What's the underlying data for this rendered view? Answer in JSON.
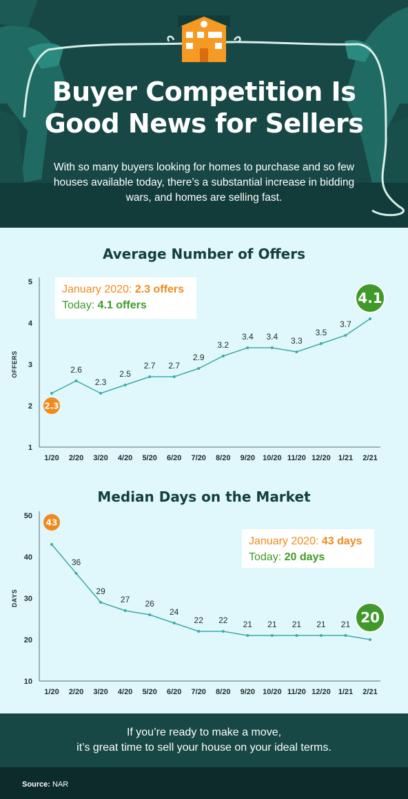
{
  "header": {
    "title_line1": "Buyer Competition Is",
    "title_line2": "Good News for Sellers",
    "subtitle": "With so many buyers looking for homes to purchase and so few houses available today, there’s a substantial increase in bidding wars, and homes are selling fast.",
    "icon": "house-icon"
  },
  "colors": {
    "header_bg": "#174845",
    "page_bg": "#e0f8fb",
    "line": "#3aaaa3",
    "orange": "#f08a1c",
    "green": "#3f9a2a",
    "dark_text": "#133f3d"
  },
  "chart_data": [
    {
      "type": "line",
      "title": "Average Number of Offers",
      "xlabel": "",
      "ylabel": "OFFERS",
      "ylim": [
        1,
        5
      ],
      "yticks": [
        "1",
        "2",
        "3",
        "4",
        "5"
      ],
      "categories": [
        "1/20",
        "2/20",
        "3/20",
        "4/20",
        "5/20",
        "6/20",
        "7/20",
        "8/20",
        "9/20",
        "10/20",
        "11/20",
        "12/20",
        "1/21",
        "2/21"
      ],
      "values": [
        2.3,
        2.6,
        2.3,
        2.5,
        2.7,
        2.7,
        2.9,
        3.2,
        3.4,
        3.4,
        3.3,
        3.5,
        3.7,
        4.1
      ],
      "labels": [
        "2.3",
        "2.6",
        "2.3",
        "2.5",
        "2.7",
        "2.7",
        "2.9",
        "3.2",
        "3.4",
        "3.4",
        "3.3",
        "3.5",
        "3.7",
        "4.1"
      ],
      "grid": false,
      "legend": {
        "placement": "top-left",
        "start_label": "January 2020: ",
        "start_value": "2.3 offers",
        "end_label": "Today: ",
        "end_value": "4.1 offers"
      }
    },
    {
      "type": "line",
      "title": "Median Days on the Market",
      "xlabel": "",
      "ylabel": "DAYS",
      "ylim": [
        10,
        50
      ],
      "yticks": [
        "10",
        "20",
        "30",
        "40",
        "50"
      ],
      "categories": [
        "1/20",
        "2/20",
        "3/20",
        "4/20",
        "5/20",
        "6/20",
        "7/20",
        "8/20",
        "9/20",
        "10/20",
        "11/20",
        "12/20",
        "1/21",
        "2/21"
      ],
      "values": [
        43,
        36,
        29,
        27,
        26,
        24,
        22,
        22,
        21,
        21,
        21,
        21,
        21,
        20
      ],
      "labels": [
        "43",
        "36",
        "29",
        "27",
        "26",
        "24",
        "22",
        "22",
        "21",
        "21",
        "21",
        "21",
        "21",
        "20"
      ],
      "grid": false,
      "legend": {
        "placement": "top-right",
        "start_label": "January 2020: ",
        "start_value": "43 days",
        "end_label": "Today: ",
        "end_value": "20 days"
      }
    }
  ],
  "footer": {
    "cta_line1": "If you’re ready to make a move,",
    "cta_line2": "it’s great time to sell your house on your ideal terms.",
    "source_label": "Source:",
    "source_value": "NAR"
  }
}
